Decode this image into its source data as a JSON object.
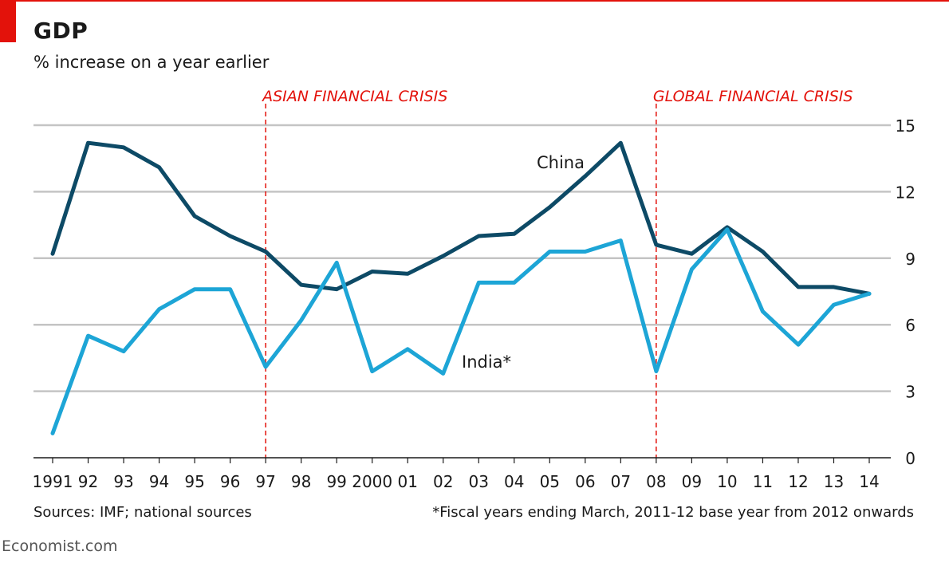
{
  "header": {
    "title": "GDP",
    "subtitle": "% increase on a year earlier"
  },
  "footer": {
    "sources": "Sources: IMF; national sources",
    "footnote": "*Fiscal years ending March, 2011-12 base year from 2012 onwards",
    "watermark": "Economist.com"
  },
  "colors": {
    "china": "#0d4a66",
    "india": "#1da5d6",
    "accent_red": "#e3120b",
    "grid": "#c4c4c4"
  },
  "chart_data": {
    "type": "line",
    "title": "GDP",
    "ylabel": "% increase on a year earlier",
    "xlabel": "",
    "ylim": [
      0,
      15
    ],
    "yticks": [
      0,
      3,
      6,
      9,
      12,
      15
    ],
    "y_axis_side": "right",
    "x": [
      1991,
      1992,
      1993,
      1994,
      1995,
      1996,
      1997,
      1998,
      1999,
      2000,
      2001,
      2002,
      2003,
      2004,
      2005,
      2006,
      2007,
      2008,
      2009,
      2010,
      2011,
      2012,
      2013,
      2014
    ],
    "categories": [
      "1991",
      "92",
      "93",
      "94",
      "95",
      "96",
      "97",
      "98",
      "99",
      "2000",
      "01",
      "02",
      "03",
      "04",
      "05",
      "06",
      "07",
      "08",
      "09",
      "10",
      "11",
      "12",
      "13",
      "14"
    ],
    "series": [
      {
        "name": "China",
        "label": "China",
        "color": "#0d4a66",
        "values": [
          9.2,
          14.2,
          14.0,
          13.1,
          10.9,
          10.0,
          9.3,
          7.8,
          7.6,
          8.4,
          8.3,
          9.1,
          10.0,
          10.1,
          11.3,
          12.7,
          14.2,
          9.6,
          9.2,
          10.4,
          9.3,
          7.7,
          7.7,
          7.4
        ]
      },
      {
        "name": "India*",
        "label": "India*",
        "color": "#1da5d6",
        "values": [
          1.1,
          5.5,
          4.8,
          6.7,
          7.6,
          7.6,
          4.1,
          6.2,
          8.8,
          3.9,
          4.9,
          3.8,
          7.9,
          7.9,
          9.3,
          9.3,
          9.8,
          3.9,
          8.5,
          10.3,
          6.6,
          5.1,
          6.9,
          7.4
        ]
      }
    ],
    "annotations": [
      {
        "text": "ASIAN FINANCIAL CRISIS",
        "x": 1997
      },
      {
        "text": "GLOBAL FINANCIAL CRISIS",
        "x": 2008
      }
    ],
    "grid": true,
    "legend": "inline labels"
  }
}
